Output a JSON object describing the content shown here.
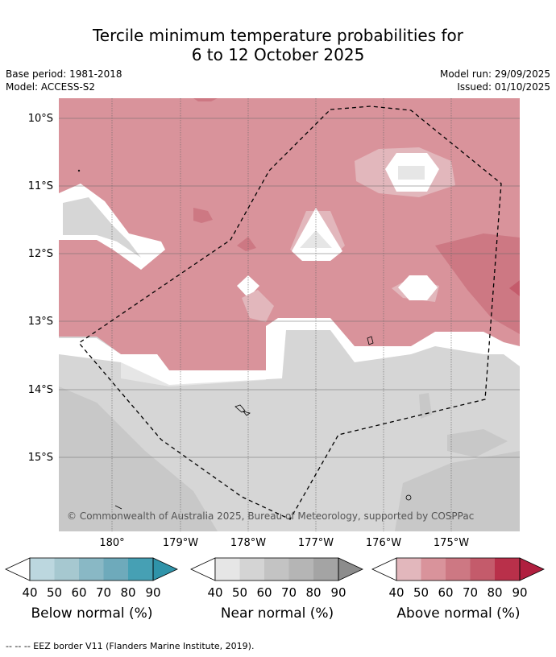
{
  "title_line1": "Tercile minimum temperature probabilities for",
  "title_line2": "6 to 12 October 2025",
  "base_period": "Base period: 1981-2018",
  "model": "Model: ACCESS-S2",
  "model_run": "Model run: 29/09/2025",
  "issued": "Issued: 01/10/2025",
  "map": {
    "lat_labels": [
      "10°S",
      "11°S",
      "12°S",
      "13°S",
      "14°S",
      "15°S"
    ],
    "lon_labels": [
      "180°",
      "179°W",
      "178°W",
      "177°W",
      "176°W",
      "175°W"
    ],
    "copyright": "© Commonwealth of Australia 2025, Bureau of Meteorology, supported by COSPPac"
  },
  "legends": [
    {
      "caption": "Below normal (%)",
      "ticks": [
        "40",
        "50",
        "60",
        "70",
        "80",
        "90"
      ],
      "colors": [
        "#bcd7df",
        "#a6c8d0",
        "#89b8c5",
        "#6eaabb",
        "#46a0b4",
        "#2f93a9"
      ]
    },
    {
      "caption": "Near normal (%)",
      "ticks": [
        "40",
        "50",
        "60",
        "70",
        "80",
        "90"
      ],
      "colors": [
        "#e6e6e6",
        "#d4d4d4",
        "#c3c3c3",
        "#b5b5b5",
        "#a4a4a4",
        "#8c8c8c"
      ]
    },
    {
      "caption": "Above normal (%)",
      "ticks": [
        "40",
        "50",
        "60",
        "70",
        "80",
        "90"
      ],
      "colors": [
        "#e2b7bc",
        "#d9939b",
        "#cd7883",
        "#c45b6b",
        "#b9304a",
        "#b01f3f"
      ]
    }
  ],
  "footnote": "--  --  -- EEZ border V11 (Flanders Marine Institute, 2019)."
}
